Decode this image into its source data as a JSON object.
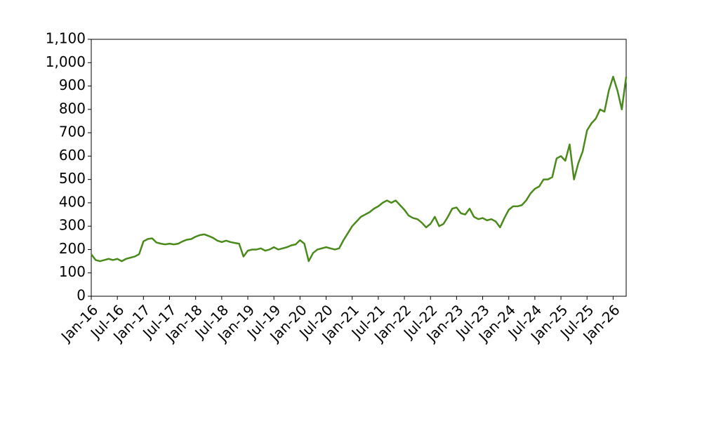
{
  "chart_data": {
    "type": "line",
    "x": [
      "2016-01",
      "2016-02",
      "2016-03",
      "2016-04",
      "2016-05",
      "2016-06",
      "2016-07",
      "2016-08",
      "2016-09",
      "2016-10",
      "2016-11",
      "2016-12",
      "2017-01",
      "2017-02",
      "2017-03",
      "2017-04",
      "2017-05",
      "2017-06",
      "2017-07",
      "2017-08",
      "2017-09",
      "2017-10",
      "2017-11",
      "2017-12",
      "2018-01",
      "2018-02",
      "2018-03",
      "2018-04",
      "2018-05",
      "2018-06",
      "2018-07",
      "2018-08",
      "2018-09",
      "2018-10",
      "2018-11",
      "2018-12",
      "2019-01",
      "2019-02",
      "2019-03",
      "2019-04",
      "2019-05",
      "2019-06",
      "2019-07",
      "2019-08",
      "2019-09",
      "2019-10",
      "2019-11",
      "2019-12",
      "2020-01",
      "2020-02",
      "2020-03",
      "2020-04",
      "2020-05",
      "2020-06",
      "2020-07",
      "2020-08",
      "2020-09",
      "2020-10",
      "2020-11",
      "2020-12",
      "2021-01",
      "2021-02",
      "2021-03",
      "2021-04",
      "2021-05",
      "2021-06",
      "2021-07",
      "2021-08",
      "2021-09",
      "2021-10",
      "2021-11",
      "2021-12",
      "2022-01",
      "2022-02",
      "2022-03",
      "2022-04",
      "2022-05",
      "2022-06",
      "2022-07",
      "2022-08",
      "2022-09",
      "2022-10",
      "2022-11",
      "2022-12",
      "2023-01",
      "2023-02",
      "2023-03",
      "2023-04",
      "2023-05",
      "2023-06",
      "2023-07",
      "2023-08",
      "2023-09",
      "2023-10",
      "2023-11",
      "2023-12",
      "2024-01",
      "2024-02",
      "2024-03",
      "2024-04",
      "2024-05",
      "2024-06",
      "2024-07",
      "2024-08",
      "2024-09",
      "2024-10",
      "2024-11",
      "2024-12",
      "2025-01",
      "2025-02",
      "2025-03",
      "2025-04",
      "2025-05",
      "2025-06",
      "2025-07",
      "2025-08",
      "2025-09",
      "2025-10",
      "2025-11",
      "2025-12",
      "2026-01",
      "2026-02",
      "2026-03",
      "2026-04"
    ],
    "values": [
      180,
      155,
      150,
      155,
      160,
      155,
      160,
      150,
      160,
      165,
      170,
      180,
      235,
      245,
      248,
      230,
      225,
      222,
      225,
      222,
      225,
      235,
      242,
      245,
      255,
      262,
      265,
      258,
      250,
      238,
      232,
      238,
      232,
      228,
      225,
      170,
      195,
      200,
      200,
      205,
      195,
      200,
      210,
      200,
      205,
      210,
      218,
      222,
      240,
      225,
      150,
      185,
      200,
      205,
      210,
      205,
      200,
      205,
      240,
      270,
      300,
      320,
      340,
      350,
      360,
      375,
      385,
      400,
      410,
      400,
      410,
      390,
      370,
      345,
      335,
      330,
      315,
      295,
      310,
      340,
      300,
      310,
      340,
      375,
      380,
      355,
      350,
      375,
      340,
      330,
      335,
      325,
      330,
      320,
      295,
      335,
      370,
      385,
      385,
      390,
      410,
      440,
      460,
      470,
      500,
      500,
      510,
      590,
      600,
      580,
      650,
      500,
      570,
      620,
      710,
      740,
      760,
      800,
      790,
      880,
      940,
      880,
      800,
      940
    ],
    "color": "#4a8a1a",
    "xlim": [
      "2016-01",
      "2026-04"
    ],
    "xticks": [
      {
        "value": "2016-01",
        "label": "Jan-16"
      },
      {
        "value": "2016-07",
        "label": "Jul-16"
      },
      {
        "value": "2017-01",
        "label": "Jan-17"
      },
      {
        "value": "2017-07",
        "label": "Jul-17"
      },
      {
        "value": "2018-01",
        "label": "Jan-18"
      },
      {
        "value": "2018-07",
        "label": "Jul-18"
      },
      {
        "value": "2019-01",
        "label": "Jan-19"
      },
      {
        "value": "2019-07",
        "label": "Jul-19"
      },
      {
        "value": "2020-01",
        "label": "Jan-20"
      },
      {
        "value": "2020-07",
        "label": "Jul-20"
      },
      {
        "value": "2021-01",
        "label": "Jan-21"
      },
      {
        "value": "2021-07",
        "label": "Jul-21"
      },
      {
        "value": "2022-01",
        "label": "Jan-22"
      },
      {
        "value": "2022-07",
        "label": "Jul-22"
      },
      {
        "value": "2023-01",
        "label": "Jan-23"
      },
      {
        "value": "2023-07",
        "label": "Jul-23"
      },
      {
        "value": "2024-01",
        "label": "Jan-24"
      },
      {
        "value": "2024-07",
        "label": "Jul-24"
      },
      {
        "value": "2025-01",
        "label": "Jan-25"
      },
      {
        "value": "2025-07",
        "label": "Jul-25"
      },
      {
        "value": "2026-01",
        "label": "Jan-26"
      }
    ],
    "ylim": [
      0,
      1100
    ],
    "yticks": [
      0,
      100,
      200,
      300,
      400,
      500,
      600,
      700,
      800,
      900,
      {
        "value": 1000,
        "label": "1,000"
      },
      {
        "value": 1100,
        "label": "1,100"
      }
    ],
    "grid": false
  }
}
